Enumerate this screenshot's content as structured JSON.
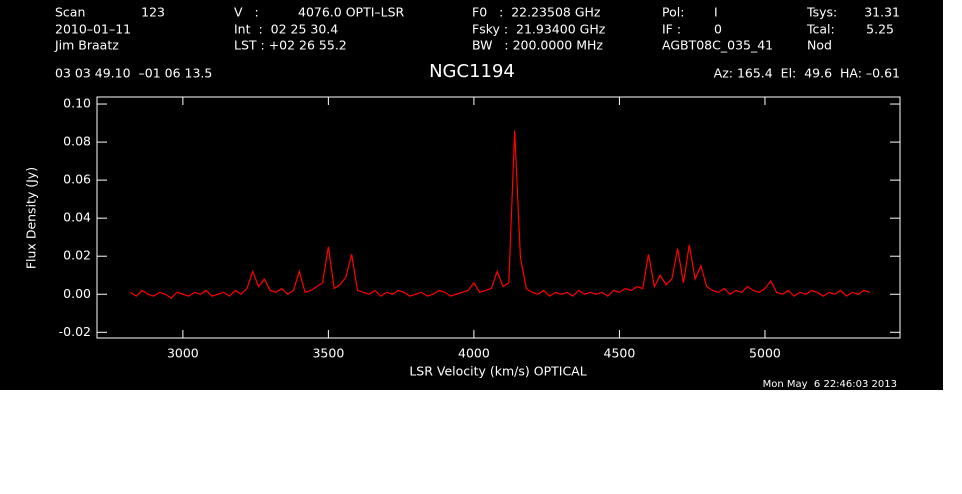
{
  "header": {
    "rows": [
      [
        "Scan",
        "123",
        "V   :",
        "4076.0 OPTI–LSR",
        "F0   :  22.23508 GHz",
        "Pol:",
        "I",
        "Tsys:",
        "31.31"
      ],
      [
        "2010–01–11",
        "Int  :  02 25 30.4",
        "Fsky :  21.93400 GHz",
        "IF :",
        "0",
        "Tcal:",
        "5.25"
      ],
      [
        "Jim Braatz",
        "LST : +02 26 55.2",
        "BW   : 200.0000 MHz",
        "AGBT08C_035_41",
        "Nod"
      ],
      [
        "03 03 49.10  –01 06 13.5",
        "Az: 165.4  El:  49.6  HA: –0.61"
      ]
    ],
    "date": "Mon May  6 22:46:03 2013"
  },
  "chart_data": {
    "type": "line",
    "title": "NGC1194",
    "xlabel": "LSR Velocity (km/s) OPTICAL",
    "ylabel": "Flux Density (Jy)",
    "xlim": [
      2705,
      5464
    ],
    "ylim": [
      -0.023,
      0.1037
    ],
    "xticks": [
      3000,
      3500,
      4000,
      4500,
      5000
    ],
    "yticks": [
      -0.02,
      {
        "value": 0,
        "label": "0.00"
      },
      0.02,
      0.04,
      0.06,
      0.08,
      {
        "value": 0.1,
        "label": "0.10"
      }
    ],
    "x": [
      2820,
      2840,
      2860,
      2880,
      2900,
      2920,
      2940,
      2960,
      2980,
      3000,
      3020,
      3040,
      3060,
      3080,
      3100,
      3120,
      3140,
      3160,
      3180,
      3200,
      3220,
      3240,
      3260,
      3280,
      3300,
      3320,
      3340,
      3360,
      3380,
      3400,
      3420,
      3440,
      3460,
      3480,
      3500,
      3520,
      3540,
      3560,
      3580,
      3600,
      3620,
      3640,
      3660,
      3680,
      3700,
      3720,
      3740,
      3760,
      3780,
      3800,
      3820,
      3840,
      3860,
      3880,
      3900,
      3920,
      3940,
      3960,
      3980,
      4000,
      4020,
      4040,
      4060,
      4080,
      4100,
      4120,
      4140,
      4160,
      4180,
      4200,
      4220,
      4240,
      4260,
      4280,
      4300,
      4320,
      4340,
      4360,
      4380,
      4400,
      4420,
      4440,
      4460,
      4480,
      4500,
      4520,
      4540,
      4560,
      4580,
      4600,
      4620,
      4640,
      4660,
      4680,
      4700,
      4720,
      4740,
      4760,
      4780,
      4800,
      4820,
      4840,
      4860,
      4880,
      4900,
      4920,
      4940,
      4960,
      4980,
      5000,
      5020,
      5040,
      5060,
      5080,
      5100,
      5120,
      5140,
      5160,
      5180,
      5200,
      5220,
      5240,
      5260,
      5280,
      5300,
      5320,
      5340,
      5360
    ],
    "series": [
      {
        "color": "#ff0000",
        "values": [
          0.001,
          -0.001,
          0.002,
          0,
          -0.001,
          0.001,
          0,
          -0.002,
          0.001,
          0,
          -0.001,
          0.001,
          0,
          0.002,
          -0.001,
          0,
          0.001,
          -0.001,
          0.002,
          0,
          0.003,
          0.012,
          0.004,
          0.008,
          0.002,
          0.001,
          0.003,
          0,
          0.002,
          0.012,
          0.001,
          0.002,
          0.004,
          0.006,
          0.025,
          0.003,
          0.005,
          0.009,
          0.021,
          0.002,
          0.001,
          0,
          0.002,
          -0.001,
          0.001,
          0,
          0.002,
          0.001,
          -0.001,
          0,
          0.001,
          -0.001,
          0,
          0.002,
          0.001,
          -0.001,
          0,
          0.001,
          0.002,
          0.006,
          0.001,
          0.002,
          0.003,
          0.012,
          0.004,
          0.006,
          0.086,
          0.019,
          0.003,
          0.001,
          0,
          0.002,
          -0.001,
          0.001,
          0,
          0.001,
          -0.001,
          0.002,
          0,
          0.001,
          0,
          0.001,
          -0.001,
          0.002,
          0.001,
          0.003,
          0.002,
          0.004,
          0.003,
          0.021,
          0.004,
          0.01,
          0.005,
          0.008,
          0.024,
          0.006,
          0.026,
          0.008,
          0.015,
          0.004,
          0.002,
          0.001,
          0.003,
          0,
          0.002,
          0.001,
          0.004,
          0.002,
          0.001,
          0.003,
          0.007,
          0.001,
          0,
          0.002,
          -0.001,
          0.001,
          0,
          0.002,
          0.001,
          -0.001,
          0.001,
          0,
          0.002,
          -0.001,
          0.001,
          0,
          0.002,
          0.001
        ]
      }
    ]
  }
}
